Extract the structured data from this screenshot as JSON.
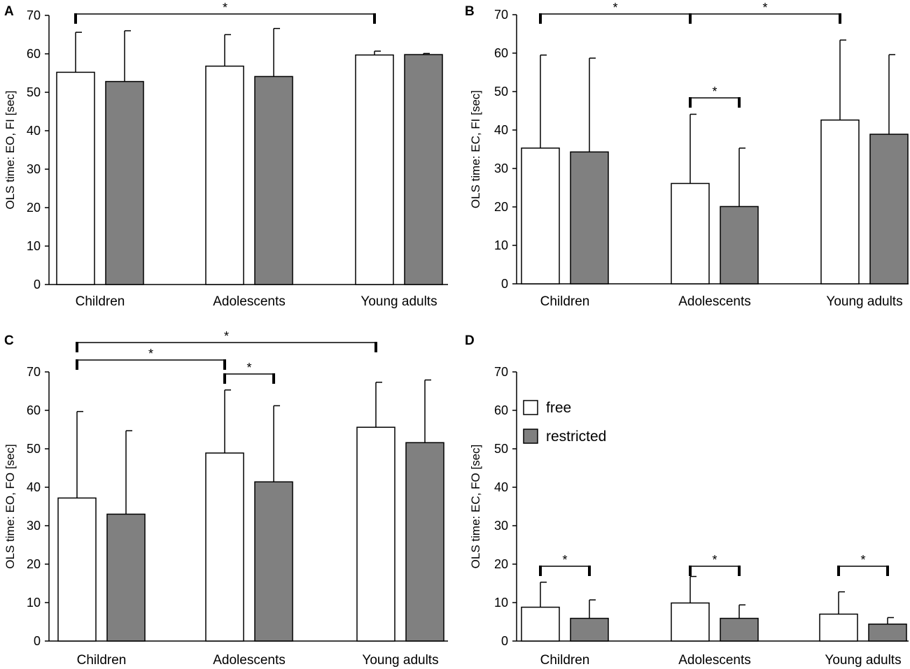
{
  "legend": {
    "free": {
      "label": "free",
      "color": "#ffffff"
    },
    "restricted": {
      "label": "restricted",
      "color": "#808080"
    }
  },
  "chart_data": [
    {
      "panel": "A",
      "type": "bar",
      "ylabel": "OLS time: EO, FI [sec]",
      "ylim": [
        0,
        70
      ],
      "yticks": [
        0,
        10,
        20,
        30,
        40,
        50,
        60,
        70
      ],
      "categories": [
        "Children",
        "Adolescents",
        "Young adults"
      ],
      "series": [
        {
          "name": "free",
          "values": [
            55.2,
            56.8,
            59.7
          ],
          "errors": [
            10.4,
            8.2,
            1.0
          ]
        },
        {
          "name": "restricted",
          "values": [
            52.8,
            54.1,
            59.8
          ],
          "errors": [
            13.2,
            12.5,
            0.3
          ]
        }
      ],
      "significance": [
        {
          "from": [
            0,
            "free"
          ],
          "to": [
            2,
            "free"
          ],
          "level": 0,
          "label": "*"
        }
      ]
    },
    {
      "panel": "B",
      "type": "bar",
      "ylabel": "OLS time: EC, FI [sec]",
      "ylim": [
        0,
        70
      ],
      "yticks": [
        0,
        10,
        20,
        30,
        40,
        50,
        60,
        70
      ],
      "categories": [
        "Children",
        "Adolescents",
        "Young adults"
      ],
      "series": [
        {
          "name": "free",
          "values": [
            35.3,
            26.1,
            42.6
          ],
          "errors": [
            24.2,
            18.0,
            20.8
          ]
        },
        {
          "name": "restricted",
          "values": [
            34.3,
            20.1,
            38.9
          ],
          "errors": [
            24.4,
            15.2,
            20.7
          ]
        }
      ],
      "significance": [
        {
          "from": [
            0,
            "free"
          ],
          "to": [
            1,
            "free"
          ],
          "level": 0,
          "label": "*"
        },
        {
          "from": [
            1,
            "free"
          ],
          "to": [
            2,
            "free"
          ],
          "level": 0,
          "label": "*"
        },
        {
          "from": [
            1,
            "free"
          ],
          "to": [
            1,
            "restricted"
          ],
          "level": 1,
          "label": "*"
        }
      ]
    },
    {
      "panel": "C",
      "type": "bar",
      "ylabel": "OLS time: EO, FO [sec]",
      "ylim": [
        0,
        70
      ],
      "yticks": [
        0,
        10,
        20,
        30,
        40,
        50,
        60,
        70
      ],
      "categories": [
        "Children",
        "Adolescents",
        "Young adults"
      ],
      "series": [
        {
          "name": "free",
          "values": [
            37.2,
            48.9,
            55.6
          ],
          "errors": [
            22.5,
            16.4,
            11.7
          ]
        },
        {
          "name": "restricted",
          "values": [
            33.0,
            41.4,
            51.6
          ],
          "errors": [
            21.7,
            19.8,
            16.3
          ]
        }
      ],
      "significance": [
        {
          "from": [
            0,
            "free"
          ],
          "to": [
            2,
            "free"
          ],
          "level": 0,
          "label": "*"
        },
        {
          "from": [
            0,
            "free"
          ],
          "to": [
            1,
            "free"
          ],
          "level": 1,
          "label": "*"
        },
        {
          "from": [
            1,
            "free"
          ],
          "to": [
            1,
            "restricted"
          ],
          "level": 2,
          "label": "*"
        }
      ]
    },
    {
      "panel": "D",
      "type": "bar",
      "ylabel": "OLS time: EC, FO [sec]",
      "ylim": [
        0,
        70
      ],
      "yticks": [
        0,
        10,
        20,
        30,
        40,
        50,
        60,
        70
      ],
      "categories": [
        "Children",
        "Adolescents",
        "Young adults"
      ],
      "legend_position": "top-left",
      "series": [
        {
          "name": "free",
          "values": [
            8.8,
            9.9,
            7.0
          ],
          "errors": [
            6.5,
            6.9,
            5.8
          ]
        },
        {
          "name": "restricted",
          "values": [
            5.9,
            5.9,
            4.4
          ],
          "errors": [
            4.8,
            3.5,
            1.7
          ]
        }
      ],
      "significance": [
        {
          "from": [
            0,
            "free"
          ],
          "to": [
            0,
            "restricted"
          ],
          "level": 0,
          "label": "*"
        },
        {
          "from": [
            1,
            "free"
          ],
          "to": [
            1,
            "restricted"
          ],
          "level": 0,
          "label": "*"
        },
        {
          "from": [
            2,
            "free"
          ],
          "to": [
            2,
            "restricted"
          ],
          "level": 0,
          "label": "*"
        }
      ]
    }
  ]
}
